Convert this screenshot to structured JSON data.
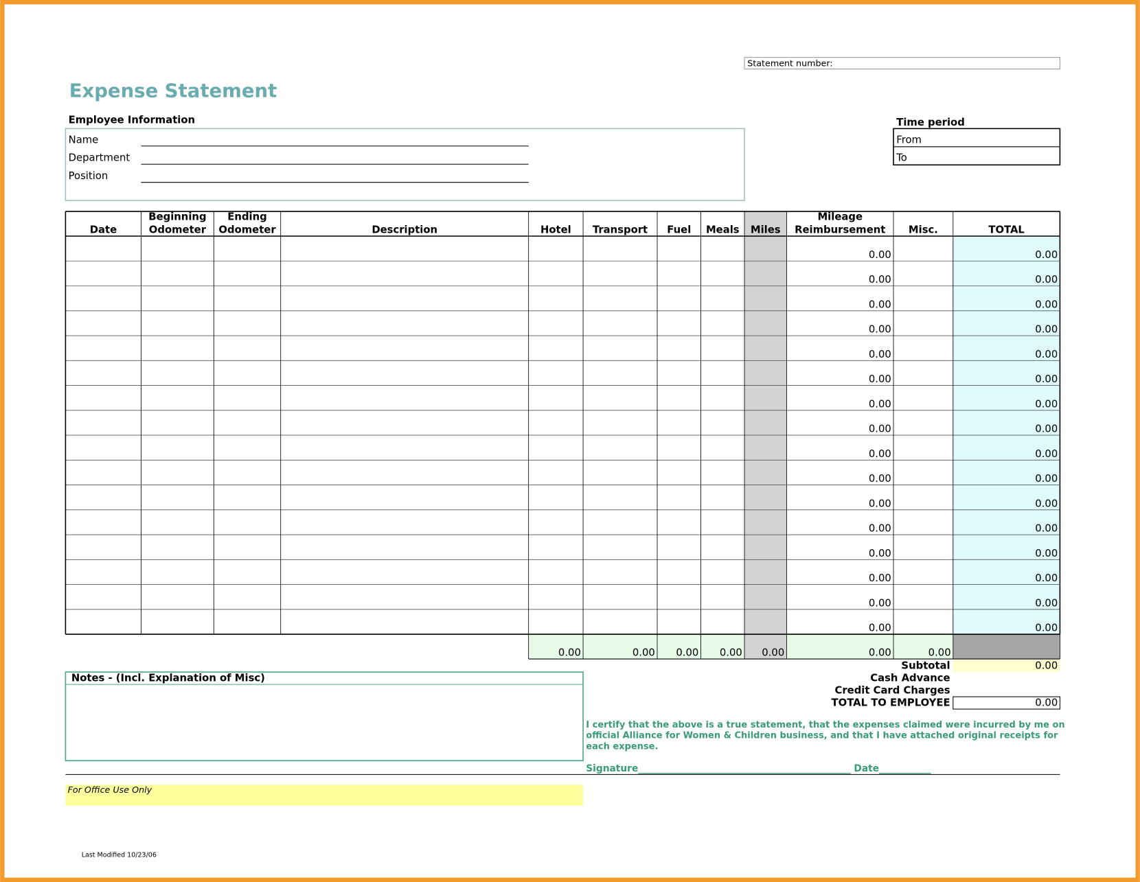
{
  "statement_number_label": "Statement number:",
  "title": "Expense Statement",
  "employee_info": {
    "heading": "Employee Information",
    "fields": [
      "Name",
      "Department",
      "Position"
    ]
  },
  "time_period": {
    "heading": "Time period",
    "fields": [
      "From",
      "To"
    ]
  },
  "table": {
    "columns": [
      {
        "lines": [
          "Date"
        ]
      },
      {
        "lines": [
          "Beginning",
          "Odometer"
        ]
      },
      {
        "lines": [
          "Ending",
          "Odometer"
        ]
      },
      {
        "lines": [
          "Description"
        ]
      },
      {
        "lines": [
          "Hotel"
        ]
      },
      {
        "lines": [
          "Transport"
        ]
      },
      {
        "lines": [
          "Fuel"
        ]
      },
      {
        "lines": [
          "Meals"
        ]
      },
      {
        "lines": [
          "Miles"
        ]
      },
      {
        "lines": [
          "Mileage",
          "Reimbursement"
        ]
      },
      {
        "lines": [
          "Misc."
        ]
      },
      {
        "lines": [
          "TOTAL"
        ]
      }
    ],
    "rows": [
      {
        "mileage_reimbursement": "0.00",
        "total": "0.00"
      },
      {
        "mileage_reimbursement": "0.00",
        "total": "0.00"
      },
      {
        "mileage_reimbursement": "0.00",
        "total": "0.00"
      },
      {
        "mileage_reimbursement": "0.00",
        "total": "0.00"
      },
      {
        "mileage_reimbursement": "0.00",
        "total": "0.00"
      },
      {
        "mileage_reimbursement": "0.00",
        "total": "0.00"
      },
      {
        "mileage_reimbursement": "0.00",
        "total": "0.00"
      },
      {
        "mileage_reimbursement": "0.00",
        "total": "0.00"
      },
      {
        "mileage_reimbursement": "0.00",
        "total": "0.00"
      },
      {
        "mileage_reimbursement": "0.00",
        "total": "0.00"
      },
      {
        "mileage_reimbursement": "0.00",
        "total": "0.00"
      },
      {
        "mileage_reimbursement": "0.00",
        "total": "0.00"
      },
      {
        "mileage_reimbursement": "0.00",
        "total": "0.00"
      },
      {
        "mileage_reimbursement": "0.00",
        "total": "0.00"
      },
      {
        "mileage_reimbursement": "0.00",
        "total": "0.00"
      },
      {
        "mileage_reimbursement": "0.00",
        "total": "0.00"
      }
    ],
    "totals": [
      "0.00",
      "0.00",
      "0.00",
      "0.00",
      "0.00",
      "0.00",
      "0.00"
    ]
  },
  "summary": [
    {
      "label": "Subtotal",
      "value": "0.00"
    },
    {
      "label": "Cash Advance"
    },
    {
      "label": "Credit Card Charges"
    },
    {
      "label": "TOTAL TO EMPLOYEE",
      "value": "0.00"
    }
  ],
  "notes_heading": "Notes - (Incl. Explanation of Misc)",
  "certification": [
    "I certify that the above is a true statement, that the expenses claimed were incurred by me on",
    "official Alliance for Women & Children business, and that I have attached original receipts for",
    "each expense."
  ],
  "signature": "Signature_____________________________________________ Date___________",
  "office_use": "For Office Use Only",
  "footer": "Last Modified 10/23/06"
}
